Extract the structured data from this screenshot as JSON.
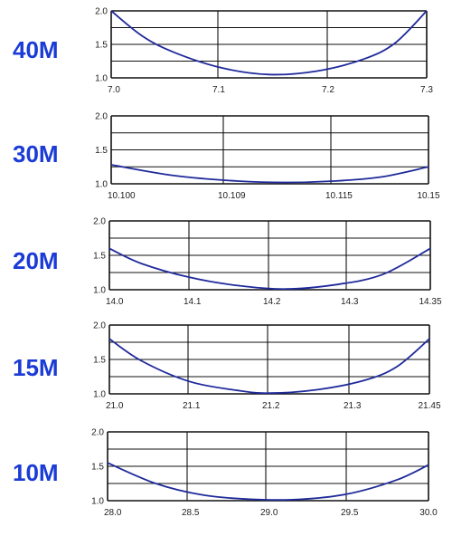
{
  "chart_data": [
    {
      "type": "line",
      "band_label": "40M",
      "y_ticks": [
        "1.0",
        "1.5",
        "2.0"
      ],
      "ylim": [
        1.0,
        2.0
      ],
      "x_ticks": [
        "7.0",
        "7.1",
        "7.2",
        "7.3"
      ],
      "series": [
        {
          "points": [
            [
              0,
              2.0
            ],
            [
              0.1,
              1.62
            ],
            [
              0.2,
              1.38
            ],
            [
              0.35,
              1.15
            ],
            [
              0.5,
              1.05
            ],
            [
              0.65,
              1.1
            ],
            [
              0.8,
              1.28
            ],
            [
              0.9,
              1.52
            ],
            [
              1.0,
              2.0
            ]
          ]
        }
      ]
    },
    {
      "type": "line",
      "band_label": "30M",
      "y_ticks": [
        "1.0",
        "1.5",
        "2.0"
      ],
      "ylim": [
        1.0,
        2.0
      ],
      "x_ticks": [
        "10.100",
        "10.109",
        "10.115",
        "10.15"
      ],
      "series": [
        {
          "points": [
            [
              0,
              1.28
            ],
            [
              0.2,
              1.12
            ],
            [
              0.4,
              1.04
            ],
            [
              0.55,
              1.02
            ],
            [
              0.7,
              1.04
            ],
            [
              0.85,
              1.1
            ],
            [
              1.0,
              1.25
            ]
          ]
        }
      ]
    },
    {
      "type": "line",
      "band_label": "20M",
      "y_ticks": [
        "1.0",
        "1.5",
        "2.0"
      ],
      "ylim": [
        1.0,
        2.0
      ],
      "x_ticks": [
        "14.0",
        "14.1",
        "14.2",
        "14.3",
        "14.35"
      ],
      "series": [
        {
          "points": [
            [
              0,
              1.6
            ],
            [
              0.1,
              1.38
            ],
            [
              0.25,
              1.18
            ],
            [
              0.4,
              1.06
            ],
            [
              0.55,
              1.01
            ],
            [
              0.7,
              1.07
            ],
            [
              0.85,
              1.22
            ],
            [
              1.0,
              1.6
            ]
          ]
        }
      ]
    },
    {
      "type": "line",
      "band_label": "15M",
      "y_ticks": [
        "1.0",
        "1.5",
        "2.0"
      ],
      "ylim": [
        1.0,
        2.0
      ],
      "x_ticks": [
        "21.0",
        "21.1",
        "21.2",
        "21.3",
        "21.45"
      ],
      "series": [
        {
          "points": [
            [
              0,
              1.8
            ],
            [
              0.1,
              1.48
            ],
            [
              0.25,
              1.18
            ],
            [
              0.4,
              1.05
            ],
            [
              0.5,
              1.01
            ],
            [
              0.65,
              1.06
            ],
            [
              0.8,
              1.2
            ],
            [
              0.9,
              1.4
            ],
            [
              1.0,
              1.8
            ]
          ]
        }
      ]
    },
    {
      "type": "line",
      "band_label": "10M",
      "y_ticks": [
        "1.0",
        "1.5",
        "2.0"
      ],
      "ylim": [
        1.0,
        2.0
      ],
      "x_ticks": [
        "28.0",
        "28.5",
        "29.0",
        "29.5",
        "30.0"
      ],
      "series": [
        {
          "points": [
            [
              0,
              1.55
            ],
            [
              0.15,
              1.25
            ],
            [
              0.3,
              1.08
            ],
            [
              0.45,
              1.02
            ],
            [
              0.6,
              1.02
            ],
            [
              0.75,
              1.1
            ],
            [
              0.9,
              1.3
            ],
            [
              1.0,
              1.52
            ]
          ]
        }
      ]
    }
  ],
  "colors": {
    "band_label": "#1a3bd6",
    "curve": "#1f2a9a",
    "grid": "#111111",
    "text": "#222222"
  }
}
